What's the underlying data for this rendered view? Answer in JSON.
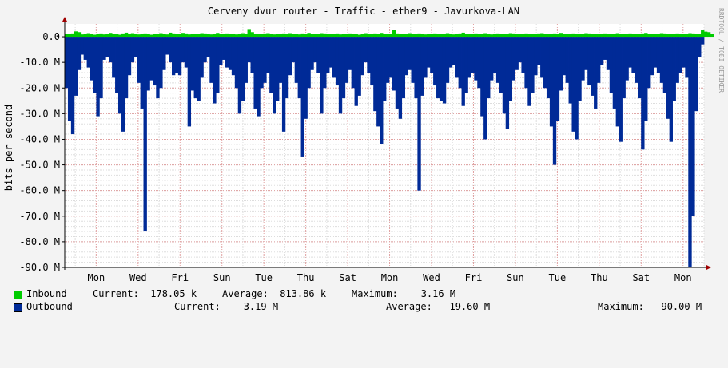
{
  "chart_data": {
    "type": "area",
    "title": "Cerveny dvur router - Traffic - ether9 - Javurkova-LAN",
    "ylabel": "bits per second",
    "watermark": "RRDTOOL / TOBI OETIKER",
    "ylim": [
      -90000000,
      5000000
    ],
    "y_ticks": [
      {
        "value": 0,
        "label": "0.0"
      },
      {
        "value": -10000000,
        "label": "-10.0 M"
      },
      {
        "value": -20000000,
        "label": "-20.0 M"
      },
      {
        "value": -30000000,
        "label": "-30.0 M"
      },
      {
        "value": -40000000,
        "label": "-40.0 M"
      },
      {
        "value": -50000000,
        "label": "-50.0 M"
      },
      {
        "value": -60000000,
        "label": "-60.0 M"
      },
      {
        "value": -70000000,
        "label": "-70.0 M"
      },
      {
        "value": -80000000,
        "label": "-80.0 M"
      },
      {
        "value": -90000000,
        "label": "-90.0 M"
      }
    ],
    "x_ticks": [
      "Mon",
      "Wed",
      "Fri",
      "Sun",
      "Tue",
      "Thu",
      "Sat",
      "Mon",
      "Wed",
      "Fri",
      "Sun",
      "Tue",
      "Thu",
      "Sat",
      "Mon"
    ],
    "grid": true,
    "colors": {
      "inbound": "#00cc00",
      "outbound": "#002a97",
      "grid_minor": "#dddddd",
      "grid_major": "#e0a0a0",
      "axis": "#000000",
      "arrow": "#a00000"
    },
    "series": [
      {
        "name": "Inbound",
        "values": [
          1.2,
          1.0,
          1.3,
          2.1,
          1.8,
          0.9,
          1.1,
          1.4,
          1.0,
          0.8,
          1.2,
          1.3,
          0.9,
          1.1,
          1.5,
          1.2,
          1.0,
          0.8,
          1.3,
          1.6,
          1.1,
          1.4,
          1.0,
          0.9,
          1.2,
          1.3,
          1.1,
          0.8,
          1.0,
          1.2,
          1.4,
          1.1,
          0.9,
          1.6,
          1.3,
          1.0,
          1.2,
          1.5,
          1.3,
          0.9,
          1.1,
          1.2,
          1.0,
          1.4,
          1.3,
          1.1,
          0.9,
          1.2,
          1.5,
          1.0,
          1.1,
          1.3,
          1.2,
          1.0,
          0.9,
          1.2,
          1.4,
          1.1,
          3.0,
          1.8,
          1.2,
          1.0,
          1.1,
          1.3,
          1.4,
          1.0,
          0.9,
          1.1,
          1.2,
          1.3,
          1.0,
          1.4,
          1.2,
          1.1,
          0.9,
          1.3,
          1.2,
          1.5,
          1.0,
          1.1,
          1.2,
          1.4,
          1.3,
          1.0,
          1.1,
          1.2,
          1.3,
          0.9,
          1.1,
          1.0,
          1.3,
          1.2,
          1.1,
          0.8,
          1.2,
          1.4,
          1.0,
          1.1,
          1.3,
          1.2,
          1.5,
          1.1,
          1.0,
          1.2,
          2.6,
          1.3,
          1.1,
          1.2,
          1.0,
          1.4,
          1.2,
          1.1,
          1.3,
          1.0,
          0.9,
          1.2,
          1.1,
          1.3,
          1.2,
          1.0,
          1.1,
          1.4,
          1.2,
          0.9,
          1.1,
          1.3,
          1.6,
          1.2,
          1.0,
          1.1,
          1.3,
          1.2,
          1.0,
          1.4,
          1.1,
          0.9,
          1.2,
          1.3,
          1.0,
          1.1,
          1.2,
          1.4,
          1.3,
          1.0,
          1.1,
          1.2,
          1.3,
          1.0,
          1.1,
          1.2,
          1.3,
          1.4,
          1.2,
          1.1,
          1.0,
          1.3,
          1.2,
          1.5,
          1.1,
          1.0,
          1.2,
          1.3,
          1.1,
          1.0,
          1.2,
          1.4,
          1.3,
          1.1,
          1.0,
          1.2,
          1.1,
          1.3,
          1.2,
          1.0,
          1.1,
          1.4,
          1.2,
          1.0,
          1.1,
          1.3,
          1.2,
          1.0,
          1.1,
          1.3,
          1.5,
          1.2,
          1.1,
          1.0,
          1.2,
          1.4,
          1.3,
          1.1,
          1.0,
          1.2,
          1.3,
          1.0,
          1.1,
          1.2,
          1.4,
          1.3,
          1.1,
          1.0,
          2.5,
          2.0,
          1.8,
          1.2
        ],
        "unit_note": "Mbit/s positive"
      },
      {
        "name": "Outbound",
        "values": [
          20,
          33,
          38,
          23,
          13,
          7,
          9,
          12,
          17,
          22,
          31,
          24,
          9,
          8,
          10,
          16,
          22,
          30,
          37,
          24,
          15,
          10,
          8,
          18,
          28,
          76,
          21,
          17,
          19,
          24,
          20,
          13,
          7,
          10,
          15,
          14,
          15,
          10,
          12,
          35,
          21,
          24,
          25,
          16,
          10,
          8,
          18,
          26,
          22,
          11,
          9,
          12,
          13,
          15,
          20,
          30,
          25,
          18,
          10,
          14,
          28,
          31,
          20,
          18,
          14,
          22,
          30,
          25,
          18,
          37,
          24,
          15,
          10,
          18,
          24,
          47,
          32,
          20,
          13,
          10,
          14,
          30,
          20,
          14,
          12,
          16,
          19,
          30,
          24,
          18,
          13,
          20,
          27,
          23,
          15,
          10,
          14,
          19,
          29,
          35,
          42,
          25,
          18,
          16,
          21,
          28,
          32,
          24,
          15,
          13,
          18,
          24,
          60,
          23,
          16,
          12,
          14,
          19,
          24,
          25,
          26,
          18,
          12,
          11,
          16,
          20,
          27,
          22,
          16,
          14,
          17,
          20,
          31,
          40,
          24,
          17,
          14,
          18,
          22,
          30,
          36,
          25,
          17,
          13,
          10,
          14,
          20,
          27,
          22,
          15,
          11,
          16,
          20,
          24,
          35,
          50,
          33,
          21,
          15,
          18,
          26,
          37,
          40,
          25,
          17,
          13,
          19,
          23,
          28,
          18,
          11,
          9,
          13,
          22,
          28,
          35,
          41,
          24,
          17,
          12,
          14,
          18,
          24,
          44,
          33,
          20,
          15,
          12,
          14,
          18,
          22,
          32,
          41,
          25,
          18,
          14,
          12,
          16,
          90,
          70,
          29,
          8,
          3
        ]
      }
    ]
  },
  "legend": {
    "inbound": {
      "label": "Inbound",
      "current": "Current:  178.05 k",
      "average": "Average:  813.86 k",
      "maximum": "Maximum:    3.16 M"
    },
    "outbound": {
      "label": "Outbound",
      "current": "Current:    3.19 M",
      "average": "Average:   19.60 M",
      "maximum": "Maximum:   90.00 M"
    }
  }
}
